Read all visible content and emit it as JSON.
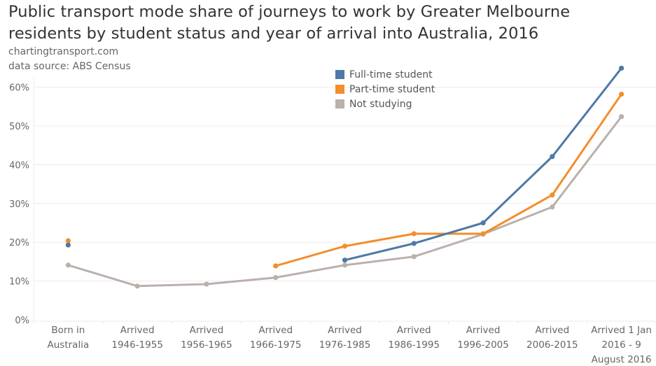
{
  "header": {
    "title_line1": "Public transport mode share of journeys to work by Greater Melbourne",
    "title_line2": "residents by student status and year of arrival into Australia, 2016",
    "source_line1": "chartingtransport.com",
    "source_line2": "data source: ABS Census"
  },
  "legend": {
    "items": [
      {
        "label": "Full-time student",
        "color": "#4e79a7"
      },
      {
        "label": "Part-time student",
        "color": "#f28e2b"
      },
      {
        "label": "Not studying",
        "color": "#bab0ac"
      }
    ]
  },
  "chart_data": {
    "type": "line",
    "title": "Public transport mode share of journeys to work by Greater Melbourne residents by student status and year of arrival into Australia, 2016",
    "xlabel": "",
    "ylabel": "",
    "ylim": [
      0,
      0.62
    ],
    "yticks": [
      0,
      0.1,
      0.2,
      0.3,
      0.4,
      0.5,
      0.6
    ],
    "ytick_labels": [
      "0%",
      "10%",
      "20%",
      "30%",
      "40%",
      "50%",
      "60%"
    ],
    "grid": true,
    "legend_position": "top-center",
    "categories": [
      [
        "Born in",
        "Australia"
      ],
      [
        "Arrived",
        "1946-1955"
      ],
      [
        "Arrived",
        "1956-1965"
      ],
      [
        "Arrived",
        "1966-1975"
      ],
      [
        "Arrived",
        "1976-1985"
      ],
      [
        "Arrived",
        "1986-1995"
      ],
      [
        "Arrived",
        "1996-2005"
      ],
      [
        "Arrived",
        "2006-2015"
      ],
      [
        "Arrived 1 Jan",
        "2016 - 9",
        "August 2016"
      ]
    ],
    "series": [
      {
        "name": "Not studying",
        "color": "#bab0ac",
        "values": [
          0.141,
          0.087,
          0.092,
          0.109,
          0.141,
          0.163,
          0.221,
          0.291,
          0.524
        ]
      },
      {
        "name": "Part-time student",
        "color": "#f28e2b",
        "values": [
          0.204,
          null,
          null,
          0.139,
          0.19,
          0.222,
          0.222,
          0.322,
          0.582
        ]
      },
      {
        "name": "Full-time student",
        "color": "#4e79a7",
        "values": [
          0.193,
          null,
          null,
          null,
          0.154,
          0.197,
          0.25,
          0.421,
          0.649
        ]
      }
    ]
  }
}
